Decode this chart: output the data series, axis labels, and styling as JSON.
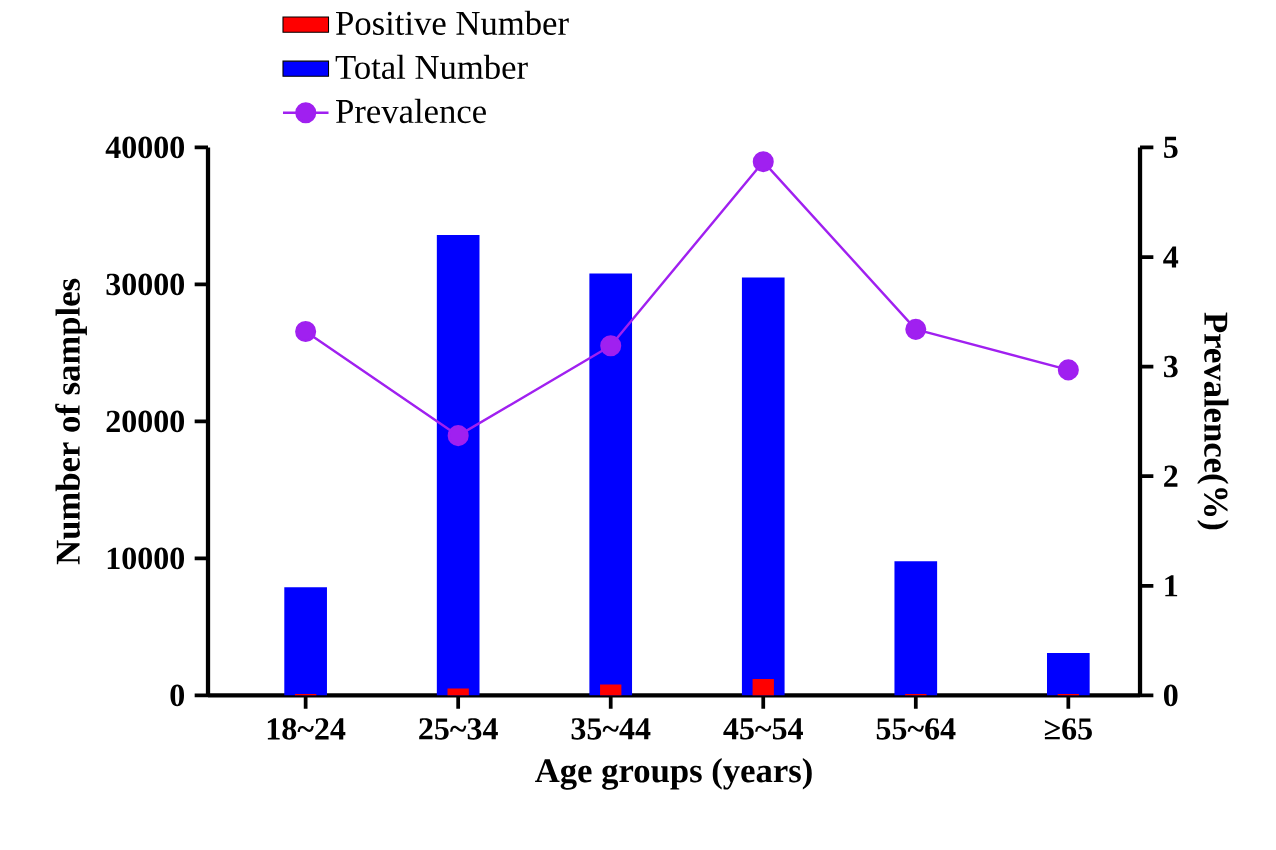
{
  "chart_data": {
    "type": "bar",
    "xlabel": "Age groups (years)",
    "ylabel": "Number of samples",
    "y2label": "Prevalence(%)",
    "categories": [
      "18~24",
      "25~34",
      "35~44",
      "45~54",
      "55~64",
      "≥65"
    ],
    "series": [
      {
        "name": "Positive Number",
        "color": "#ff0000",
        "values": [
          100,
          500,
          800,
          1200,
          100,
          100
        ]
      },
      {
        "name": "Total Number",
        "color": "#0000ff",
        "values": [
          7900,
          33600,
          30800,
          30500,
          9800,
          3100
        ]
      },
      {
        "name": "Prevalence",
        "type": "line",
        "axis": "y2",
        "color": "#a020f0",
        "marker": "circle",
        "values": [
          3.32,
          2.37,
          3.19,
          4.87,
          3.34,
          2.97
        ]
      }
    ],
    "ylim": [
      0,
      40000
    ],
    "yticks": [
      0,
      10000,
      20000,
      30000,
      40000
    ],
    "y2lim": [
      0,
      5
    ],
    "y2ticks": [
      0,
      1,
      2,
      3,
      4,
      5
    ],
    "legend": "top left",
    "grid": false
  }
}
